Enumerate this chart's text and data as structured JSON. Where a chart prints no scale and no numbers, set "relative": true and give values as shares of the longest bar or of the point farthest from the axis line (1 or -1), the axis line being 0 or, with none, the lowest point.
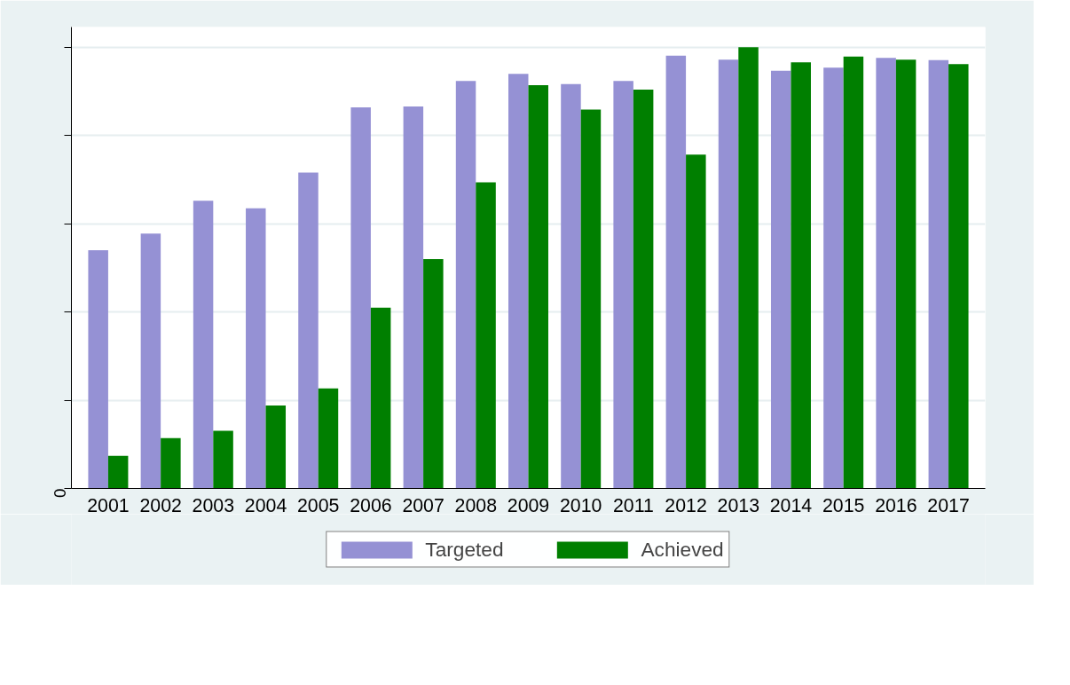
{
  "chart_data": {
    "type": "bar",
    "relative": true,
    "categories": [
      "2001",
      "2002",
      "2003",
      "2004",
      "2005",
      "2006",
      "2007",
      "2008",
      "2009",
      "2010",
      "2011",
      "2012",
      "2013",
      "2014",
      "2015",
      "2016",
      "2017"
    ],
    "series": [
      {
        "name": "Targeted",
        "color": "#9591d4",
        "values": [
          0.54,
          0.578,
          0.652,
          0.635,
          0.716,
          0.864,
          0.866,
          0.924,
          0.94,
          0.917,
          0.924,
          0.981,
          0.972,
          0.947,
          0.954,
          0.976,
          0.971
        ]
      },
      {
        "name": "Achieved",
        "color": "#007f00",
        "values": [
          0.074,
          0.114,
          0.131,
          0.188,
          0.227,
          0.41,
          0.52,
          0.694,
          0.914,
          0.859,
          0.904,
          0.757,
          1,
          0.966,
          0.979,
          0.972,
          0.962
        ]
      }
    ],
    "annotations": [
      "0"
    ],
    "grid": "y",
    "legend": "bottom"
  }
}
